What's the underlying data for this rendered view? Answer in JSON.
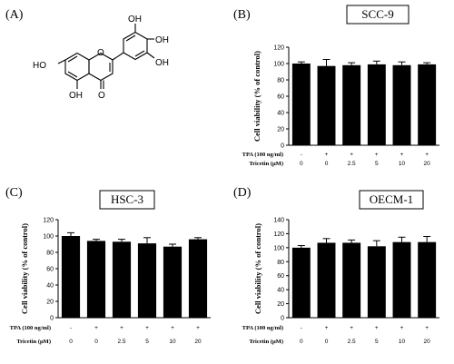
{
  "panels": {
    "A": {
      "label": "(A)"
    },
    "B": {
      "label": "(B)"
    },
    "C": {
      "label": "(C)"
    },
    "D": {
      "label": "(D)"
    }
  },
  "structure": {
    "groups": [
      "OH",
      "OH",
      "OH",
      "HO",
      "OH",
      "O",
      "O"
    ]
  },
  "chart_data": [
    {
      "panel": "B",
      "type": "bar",
      "title": "SCC-9",
      "ylabel": "Cell viability (% of control)",
      "ylim": [
        0,
        120
      ],
      "yticks": [
        0,
        20,
        40,
        60,
        80,
        100,
        120
      ],
      "row_labels": [
        "TPA (100 ng/ml)",
        "Tricetin (μM)"
      ],
      "tpa": [
        "-",
        "+",
        "+",
        "+",
        "+",
        "+"
      ],
      "tricetin": [
        "0",
        "0",
        "2.5",
        "5",
        "10",
        "20"
      ],
      "values": [
        100,
        97,
        98,
        99,
        98,
        99
      ],
      "errors": [
        2,
        8,
        3,
        4,
        4,
        2
      ]
    },
    {
      "panel": "C",
      "type": "bar",
      "title": "HSC-3",
      "ylabel": "Cell viability (% of control)",
      "ylim": [
        0,
        120
      ],
      "yticks": [
        0,
        20,
        40,
        60,
        80,
        100,
        120
      ],
      "row_labels": [
        "TPA (100 ng/ml)",
        "Tricetin (μM)"
      ],
      "tpa": [
        "-",
        "+",
        "+",
        "+",
        "+",
        "+"
      ],
      "tricetin": [
        "0",
        "0",
        "2.5",
        "5",
        "10",
        "20"
      ],
      "values": [
        100,
        94,
        93,
        91,
        87,
        96
      ],
      "errors": [
        4,
        2,
        3,
        7,
        3,
        2
      ]
    },
    {
      "panel": "D",
      "type": "bar",
      "title": "OECM-1",
      "ylabel": "Cell viability (% of control)",
      "ylim": [
        0,
        140
      ],
      "yticks": [
        0,
        20,
        40,
        60,
        80,
        100,
        120,
        140
      ],
      "row_labels": [
        "TPA (100 ng/ml)",
        "Tricetin (μM)"
      ],
      "tpa": [
        "-",
        "+",
        "+",
        "+",
        "+",
        "+"
      ],
      "tricetin": [
        "0",
        "0",
        "2.5",
        "5",
        "10",
        "20"
      ],
      "values": [
        100,
        107,
        107,
        102,
        108,
        108
      ],
      "errors": [
        3,
        6,
        4,
        8,
        7,
        8
      ]
    }
  ]
}
